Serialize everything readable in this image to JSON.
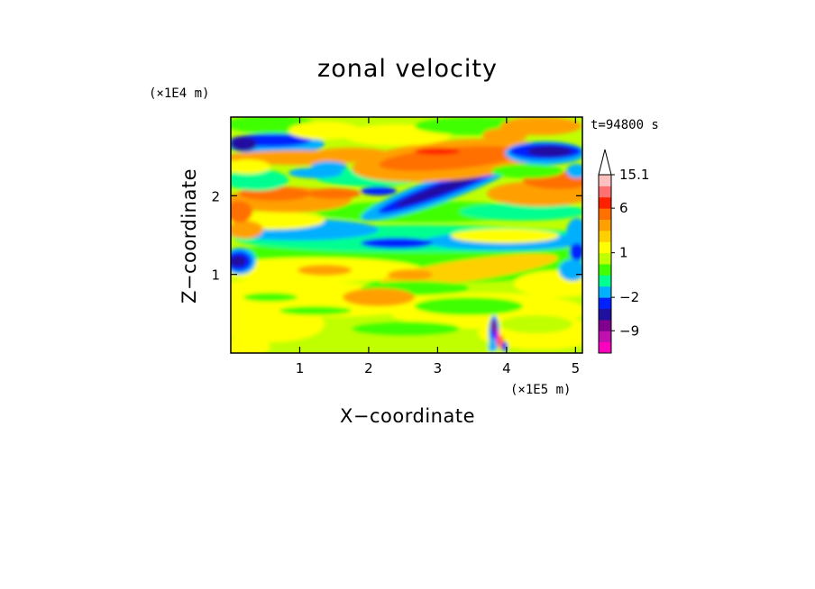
{
  "chart_data": {
    "type": "heatmap",
    "title": "zonal velocity",
    "xlabel": "X−coordinate",
    "ylabel": "Z−coordinate",
    "x_units": "(×1E5 m)",
    "y_units": "(×1E4 m)",
    "time_label": "t=94800 s",
    "xlim": [
      0,
      5.1
    ],
    "ylim": [
      0,
      3.0
    ],
    "x_ticks": [
      1,
      2,
      3,
      4,
      5
    ],
    "y_ticks": [
      1,
      2
    ],
    "x_tick_labels": [
      "1",
      "2",
      "3",
      "4",
      "5"
    ],
    "y_tick_labels": [
      "1",
      "2"
    ],
    "colorbar": {
      "levels": [
        -15,
        -12,
        -9,
        -6,
        -4,
        -2,
        -1,
        0,
        0.5,
        1,
        2,
        3,
        4,
        6,
        9,
        12,
        15.1
      ],
      "colors": [
        "#ff00c0",
        "#c010b0",
        "#800090",
        "#2010a0",
        "#0020ff",
        "#00b0ff",
        "#00ff90",
        "#40ff00",
        "#c0ff00",
        "#ffff00",
        "#ffd000",
        "#ffa000",
        "#ff7000",
        "#ff2000",
        "#ff7070",
        "#ffc0c0"
      ],
      "labeled": [
        {
          "value": 15.1,
          "text": "15.1"
        },
        {
          "value": 6,
          "text": "6"
        },
        {
          "value": 1,
          "text": "1"
        },
        {
          "value": -2,
          "text": "−2"
        },
        {
          "value": -9,
          "text": "−9"
        }
      ],
      "extend": "max"
    },
    "features": [
      {
        "name": "negative band upper-left",
        "x": [
          0.1,
          1.0
        ],
        "z": [
          2.6,
          2.8
        ],
        "value": -6
      },
      {
        "name": "negative band center",
        "x": [
          2.3,
          3.4
        ],
        "z": [
          1.9,
          2.3
        ],
        "value": -6
      },
      {
        "name": "negative band upper-right",
        "x": [
          4.2,
          5.1
        ],
        "z": [
          2.4,
          2.6
        ],
        "value": -6
      },
      {
        "name": "positive band upper-middle",
        "x": [
          2.1,
          4.0
        ],
        "z": [
          2.3,
          2.7
        ],
        "value": 4
      },
      {
        "name": "positive band left",
        "x": [
          0.2,
          2.0
        ],
        "z": [
          1.8,
          2.2
        ],
        "value": 3
      },
      {
        "name": "negative patch left",
        "x": [
          0.0,
          0.4
        ],
        "z": [
          1.0,
          1.2
        ],
        "value": -6
      },
      {
        "name": "convective plume",
        "x": [
          3.8,
          4.0
        ],
        "z": [
          0.0,
          0.4
        ],
        "value": -9
      }
    ]
  }
}
